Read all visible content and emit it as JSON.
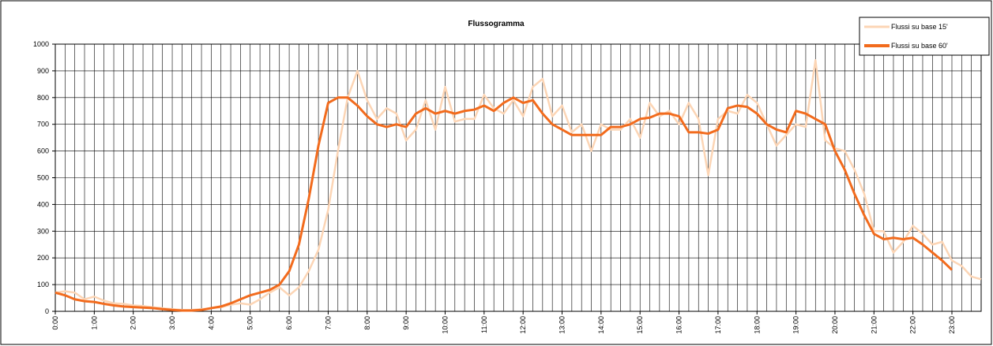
{
  "chart_data": {
    "type": "line",
    "title": "Flussogramma",
    "x": [
      0,
      0.25,
      0.5,
      0.75,
      1,
      1.25,
      1.5,
      1.75,
      2,
      2.25,
      2.5,
      2.75,
      3,
      3.25,
      3.5,
      3.75,
      4,
      4.25,
      4.5,
      4.75,
      5,
      5.25,
      5.5,
      5.75,
      6,
      6.25,
      6.5,
      6.75,
      7,
      7.25,
      7.5,
      7.75,
      8,
      8.25,
      8.5,
      8.75,
      9,
      9.25,
      9.5,
      9.75,
      10,
      10.25,
      10.5,
      10.75,
      11,
      11.25,
      11.5,
      11.75,
      12,
      12.25,
      12.5,
      12.75,
      13,
      13.25,
      13.5,
      13.75,
      14,
      14.25,
      14.5,
      14.75,
      15,
      15.25,
      15.5,
      15.75,
      16,
      16.25,
      16.5,
      16.75,
      17,
      17.25,
      17.5,
      17.75,
      18,
      18.25,
      18.5,
      18.75,
      19,
      19.25,
      19.5,
      19.75,
      20,
      20.25,
      20.5,
      20.75,
      21,
      21.25,
      21.5,
      21.75,
      22,
      22.25,
      22.5,
      22.75,
      23,
      23.25,
      23.5,
      23.75
    ],
    "series": [
      {
        "name": "Flussi su base 15'",
        "color": "#fcd5b5",
        "values": [
          70,
          75,
          70,
          45,
          55,
          40,
          30,
          28,
          22,
          20,
          15,
          12,
          8,
          5,
          5,
          8,
          12,
          15,
          25,
          30,
          25,
          45,
          70,
          90,
          60,
          90,
          150,
          230,
          380,
          600,
          800,
          900,
          790,
          720,
          760,
          740,
          640,
          680,
          790,
          680,
          840,
          710,
          720,
          720,
          810,
          760,
          740,
          790,
          730,
          840,
          870,
          730,
          770,
          670,
          700,
          600,
          700,
          680,
          680,
          720,
          650,
          780,
          730,
          750,
          700,
          780,
          720,
          510,
          720,
          750,
          740,
          810,
          780,
          700,
          620,
          660,
          700,
          690,
          940,
          640,
          610,
          600,
          530,
          440,
          300,
          300,
          220,
          260,
          320,
          290,
          250,
          260,
          190,
          170,
          130,
          120
        ]
      },
      {
        "name": "Flussi su base 60'",
        "color": "#f26b1d",
        "values": [
          70,
          60,
          45,
          38,
          35,
          28,
          22,
          18,
          16,
          14,
          12,
          8,
          5,
          3,
          3,
          5,
          12,
          18,
          30,
          45,
          60,
          70,
          80,
          100,
          150,
          250,
          420,
          620,
          780,
          800,
          800,
          770,
          730,
          700,
          690,
          700,
          690,
          740,
          760,
          740,
          750,
          740,
          750,
          755,
          770,
          750,
          780,
          800,
          780,
          790,
          740,
          700,
          680,
          660,
          660,
          660,
          660,
          690,
          690,
          700,
          720,
          725,
          740,
          740,
          730,
          670,
          670,
          665,
          680,
          760,
          770,
          765,
          740,
          700,
          680,
          670,
          750,
          740,
          720,
          700,
          600,
          530,
          440,
          360,
          290,
          270,
          275,
          270,
          275,
          250,
          220,
          190,
          155,
          null,
          null,
          null
        ]
      }
    ],
    "xlim": [
      0,
      23.75
    ],
    "xticks": [
      {
        "value": 0,
        "label": "0:00"
      },
      {
        "value": 1,
        "label": "1:00"
      },
      {
        "value": 2,
        "label": "2:00"
      },
      {
        "value": 3,
        "label": "3:00"
      },
      {
        "value": 4,
        "label": "4:00"
      },
      {
        "value": 5,
        "label": "5:00"
      },
      {
        "value": 6,
        "label": "6:00"
      },
      {
        "value": 7,
        "label": "7:00"
      },
      {
        "value": 8,
        "label": "8:00"
      },
      {
        "value": 9,
        "label": "9:00"
      },
      {
        "value": 10,
        "label": "10:00"
      },
      {
        "value": 11,
        "label": "11:00"
      },
      {
        "value": 12,
        "label": "12:00"
      },
      {
        "value": 13,
        "label": "13:00"
      },
      {
        "value": 14,
        "label": "14:00"
      },
      {
        "value": 15,
        "label": "15:00"
      },
      {
        "value": 16,
        "label": "16:00"
      },
      {
        "value": 17,
        "label": "17:00"
      },
      {
        "value": 18,
        "label": "18:00"
      },
      {
        "value": 19,
        "label": "19:00"
      },
      {
        "value": 20,
        "label": "20:00"
      },
      {
        "value": 21,
        "label": "21:00"
      },
      {
        "value": 22,
        "label": "22:00"
      },
      {
        "value": 23,
        "label": "23:00"
      }
    ],
    "ylim": [
      0,
      1000
    ],
    "yticks": [
      0,
      100,
      200,
      300,
      400,
      500,
      600,
      700,
      800,
      900,
      1000
    ],
    "grid": true,
    "legend": "top-right"
  }
}
